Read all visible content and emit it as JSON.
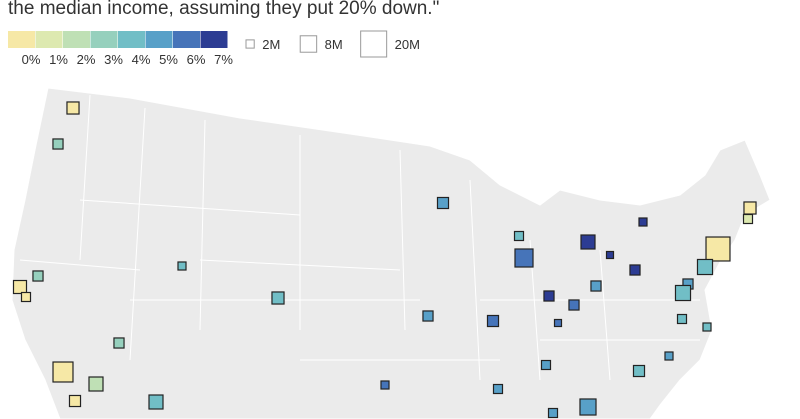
{
  "header": {
    "text": "the median income, assuming they put 20% down.\""
  },
  "color_legend": {
    "labels": [
      "0%",
      "1%",
      "2%",
      "3%",
      "4%",
      "5%",
      "6%",
      "7%"
    ],
    "colors": [
      "#f6e8a6",
      "#dde9b0",
      "#bfe0b5",
      "#96d0bd",
      "#71bec6",
      "#58a0c8",
      "#4674b9",
      "#2c3c93"
    ]
  },
  "size_legend": [
    {
      "value": 2,
      "label": "2M"
    },
    {
      "value": 8,
      "label": "8M"
    },
    {
      "value": 20,
      "label": "20M"
    }
  ],
  "markers": [
    {
      "rate": 0.5,
      "pop": 4.3
    },
    {
      "rate": 3.5,
      "pop": 3.0
    },
    {
      "rate": 0.3,
      "pop": 5.0
    },
    {
      "rate": 0.3,
      "pop": 2.4
    },
    {
      "rate": 3.2,
      "pop": 3.0
    },
    {
      "rate": 4.2,
      "pop": 1.9
    },
    {
      "rate": 4.3,
      "pop": 4.3
    },
    {
      "rate": 5.3,
      "pop": 3.6
    },
    {
      "rate": 4.5,
      "pop": 2.4
    },
    {
      "rate": 6.3,
      "pop": 9.6
    },
    {
      "rate": 7.2,
      "pop": 5.8
    },
    {
      "rate": 7.5,
      "pop": 1.45
    },
    {
      "rate": 7.5,
      "pop": 1.9
    },
    {
      "rate": 0.5,
      "pop": 4.3
    },
    {
      "rate": 1.8,
      "pop": 2.4
    },
    {
      "rate": 0.3,
      "pop": 17
    },
    {
      "rate": 4.2,
      "pop": 6.7
    },
    {
      "rate": 7.3,
      "pop": 3.0
    },
    {
      "rate": 5.3,
      "pop": 3.0
    },
    {
      "rate": 4.5,
      "pop": 6.7
    },
    {
      "rate": 5.2,
      "pop": 3.0
    },
    {
      "rate": 7.0,
      "pop": 3.0
    },
    {
      "rate": 6.3,
      "pop": 3.0
    },
    {
      "rate": 5.5,
      "pop": 3.0
    },
    {
      "rate": 6.9,
      "pop": 3.6
    },
    {
      "rate": 6.0,
      "pop": 1.45
    },
    {
      "rate": 4.6,
      "pop": 2.4
    },
    {
      "rate": 4.3,
      "pop": 1.9
    },
    {
      "rate": 3.5,
      "pop": 3.0
    },
    {
      "rate": 0.5,
      "pop": 11.8
    },
    {
      "rate": 2.0,
      "pop": 5.8
    },
    {
      "rate": 0.4,
      "pop": 3.6
    },
    {
      "rate": 4.5,
      "pop": 5.8
    },
    {
      "rate": 6.8,
      "pop": 1.9
    },
    {
      "rate": 5.3,
      "pop": 2.4
    },
    {
      "rate": 5.2,
      "pop": 1.9
    },
    {
      "rate": 4.6,
      "pop": 3.6
    },
    {
      "rate": 5.2,
      "pop": 2.4
    },
    {
      "rate": 5.1,
      "pop": 7.6
    },
    {
      "rate": 5.4,
      "pop": 2.4
    }
  ]
}
